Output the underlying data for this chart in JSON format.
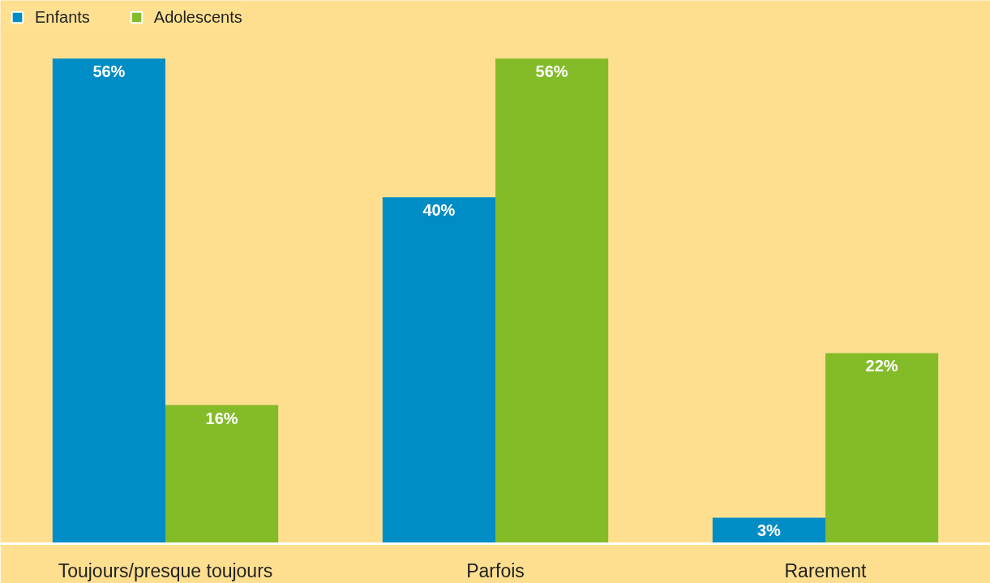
{
  "chart_data": {
    "type": "bar",
    "categories": [
      "Toujours/presque toujours",
      "Parfois",
      "Rarement"
    ],
    "series": [
      {
        "name": "Enfants",
        "color": "#008cc4",
        "values": [
          56,
          40,
          3
        ],
        "value_labels": [
          "56%",
          "40%",
          "3%"
        ]
      },
      {
        "name": "Adolescents",
        "color": "#84bb29",
        "values": [
          16,
          56,
          22
        ],
        "value_labels": [
          "16%",
          "56%",
          "22%"
        ]
      }
    ],
    "legend": "top left",
    "grid": false
  }
}
